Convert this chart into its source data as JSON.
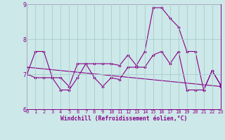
{
  "xlabel": "Windchill (Refroidissement éolien,°C)",
  "xlim": [
    0,
    23
  ],
  "ylim": [
    6,
    9
  ],
  "yticks": [
    6,
    7,
    8,
    9
  ],
  "xticks": [
    0,
    1,
    2,
    3,
    4,
    5,
    6,
    7,
    8,
    9,
    10,
    11,
    12,
    13,
    14,
    15,
    16,
    17,
    18,
    19,
    20,
    21,
    22,
    23
  ],
  "bg_color": "#cce8e8",
  "line_color": "#880088",
  "grid_color": "#b0d8d8",
  "lines": [
    {
      "x": [
        0,
        1,
        2,
        3,
        4,
        5,
        6,
        7,
        8,
        9,
        10,
        11,
        12,
        13,
        14,
        15,
        16,
        17,
        18,
        19,
        20,
        21,
        22,
        23
      ],
      "y": [
        7.0,
        7.65,
        7.65,
        6.9,
        6.9,
        6.65,
        7.3,
        7.3,
        7.3,
        7.3,
        7.3,
        7.25,
        7.55,
        7.25,
        7.65,
        8.9,
        8.9,
        8.6,
        8.35,
        7.65,
        7.65,
        6.55,
        7.1,
        6.7
      ]
    },
    {
      "x": [
        0,
        1,
        2,
        3,
        4,
        5,
        6,
        7,
        8,
        9,
        10,
        11,
        12,
        13,
        14,
        15,
        16,
        17,
        18,
        19,
        20,
        21,
        22,
        23
      ],
      "y": [
        7.0,
        6.9,
        6.9,
        6.9,
        6.55,
        6.55,
        6.9,
        7.3,
        6.9,
        6.65,
        6.9,
        6.85,
        7.2,
        7.2,
        7.2,
        7.55,
        7.65,
        7.3,
        7.65,
        6.55,
        6.55,
        6.55,
        7.1,
        6.7
      ]
    },
    {
      "x": [
        0,
        23
      ],
      "y": [
        7.2,
        6.65
      ]
    }
  ]
}
